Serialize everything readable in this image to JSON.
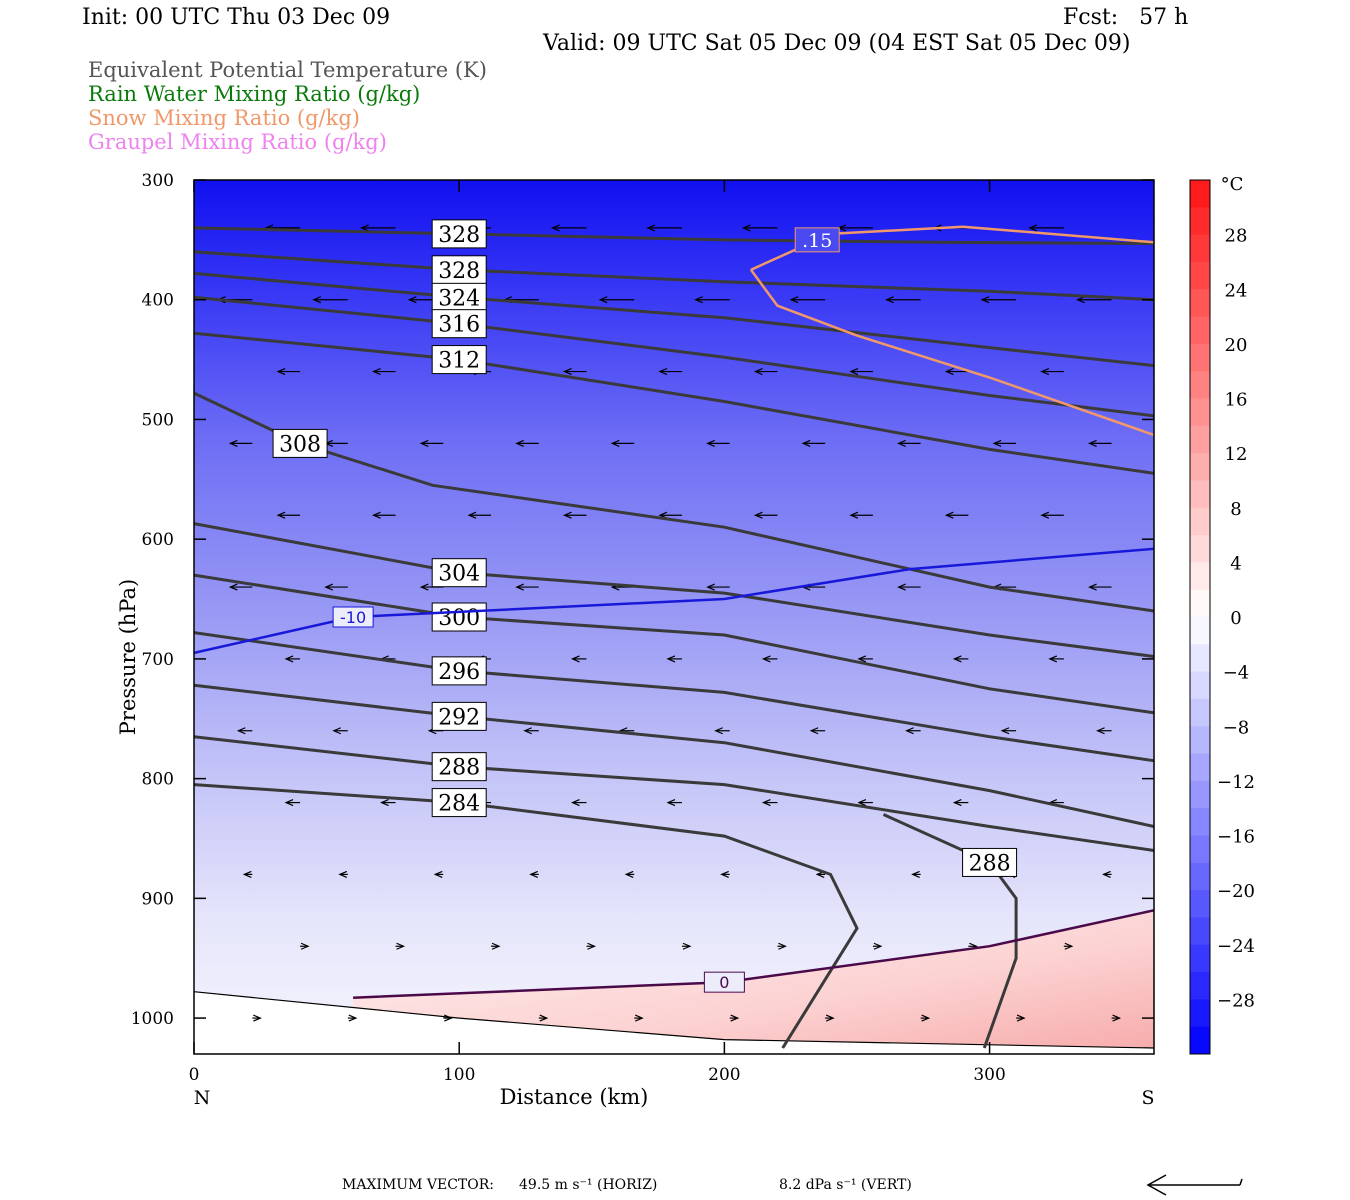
{
  "header": {
    "init": "Init: 00 UTC Thu 03 Dec 09",
    "fcst": "Fcst:   57 h",
    "valid": "Valid: 09 UTC Sat 05 Dec 09 (04 EST Sat 05 Dec 09)"
  },
  "legend": [
    {
      "label": "Equivalent Potential Temperature (K)",
      "color": "#555555"
    },
    {
      "label": "Rain Water Mixing Ratio (g/kg)",
      "color": "#0a7a0a"
    },
    {
      "label": "Snow Mixing Ratio (g/kg)",
      "color": "#f0986a"
    },
    {
      "label": "Graupel Mixing Ratio (g/kg)",
      "color": "#ee82ee"
    }
  ],
  "footer": {
    "max_vector_label": "MAXIMUM VECTOR:",
    "horiz": "49.5 m s⁻¹ (HORIZ)",
    "vert": "8.2 dPa s⁻¹ (VERT)"
  },
  "chart_data": {
    "type": "contour",
    "xlabel": "Distance (km)",
    "ylabel": "Pressure (hPa)",
    "xlim": [
      0,
      362
    ],
    "ylim": [
      1030,
      300
    ],
    "xticks": [
      0,
      100,
      200,
      300
    ],
    "yticks": [
      300,
      400,
      500,
      600,
      700,
      800,
      900,
      1000
    ],
    "x_end_labels": {
      "left": "N",
      "right": "S"
    },
    "colorbar": {
      "unit": "°C",
      "ticks": [
        28,
        24,
        20,
        16,
        12,
        8,
        4,
        0,
        -4,
        -8,
        -12,
        -16,
        -20,
        -24,
        -28
      ],
      "range": [
        -32,
        32
      ]
    },
    "theta_e_lines": [
      {
        "label": "328",
        "points": [
          [
            0,
            340
          ],
          [
            100,
            345
          ],
          [
            200,
            350
          ],
          [
            280,
            352
          ],
          [
            362,
            353
          ]
        ]
      },
      {
        "label": "328",
        "points": [
          [
            0,
            360
          ],
          [
            100,
            375
          ],
          [
            200,
            385
          ],
          [
            300,
            393
          ],
          [
            362,
            400
          ]
        ]
      },
      {
        "label": "324",
        "points": [
          [
            0,
            378
          ],
          [
            100,
            398
          ],
          [
            200,
            415
          ],
          [
            300,
            440
          ],
          [
            362,
            455
          ]
        ]
      },
      {
        "label": "316",
        "points": [
          [
            0,
            398
          ],
          [
            100,
            420
          ],
          [
            200,
            448
          ],
          [
            300,
            480
          ],
          [
            362,
            497
          ]
        ]
      },
      {
        "label": "312",
        "points": [
          [
            0,
            428
          ],
          [
            100,
            450
          ],
          [
            200,
            485
          ],
          [
            300,
            525
          ],
          [
            362,
            545
          ]
        ]
      },
      {
        "label": "308",
        "points": [
          [
            0,
            478
          ],
          [
            40,
            520
          ],
          [
            90,
            555
          ],
          [
            200,
            590
          ],
          [
            300,
            640
          ],
          [
            362,
            660
          ]
        ]
      },
      {
        "label": "304",
        "points": [
          [
            0,
            587
          ],
          [
            100,
            628
          ],
          [
            200,
            645
          ],
          [
            300,
            680
          ],
          [
            362,
            698
          ]
        ]
      },
      {
        "label": "300",
        "points": [
          [
            0,
            630
          ],
          [
            100,
            665
          ],
          [
            200,
            680
          ],
          [
            300,
            725
          ],
          [
            362,
            745
          ]
        ]
      },
      {
        "label": "296",
        "points": [
          [
            0,
            678
          ],
          [
            100,
            710
          ],
          [
            200,
            728
          ],
          [
            300,
            765
          ],
          [
            362,
            785
          ]
        ]
      },
      {
        "label": "292",
        "points": [
          [
            0,
            722
          ],
          [
            100,
            748
          ],
          [
            200,
            770
          ],
          [
            300,
            810
          ],
          [
            362,
            840
          ]
        ]
      },
      {
        "label": "288",
        "points": [
          [
            0,
            765
          ],
          [
            100,
            790
          ],
          [
            200,
            805
          ],
          [
            300,
            840
          ],
          [
            362,
            860
          ]
        ]
      },
      {
        "label": "284",
        "points": [
          [
            0,
            805
          ],
          [
            100,
            820
          ],
          [
            200,
            848
          ],
          [
            240,
            880
          ],
          [
            250,
            925
          ],
          [
            222,
            1025
          ]
        ]
      },
      {
        "label": "288",
        "points": [
          [
            260,
            830
          ],
          [
            300,
            870
          ],
          [
            310,
            900
          ],
          [
            310,
            950
          ],
          [
            298,
            1025
          ]
        ]
      }
    ],
    "isotherms": [
      {
        "label": "-10",
        "points": [
          [
            0,
            695
          ],
          [
            60,
            665
          ],
          [
            200,
            650
          ],
          [
            270,
            625
          ],
          [
            362,
            608
          ]
        ]
      },
      {
        "label": "0",
        "points": [
          [
            60,
            983
          ],
          [
            200,
            970
          ],
          [
            300,
            940
          ],
          [
            362,
            910
          ]
        ]
      }
    ],
    "snow_contour": {
      "label": ".15",
      "points": [
        [
          210,
          375
        ],
        [
          220,
          405
        ],
        [
          250,
          430
        ],
        [
          300,
          465
        ],
        [
          362,
          513
        ]
      ],
      "upper": [
        [
          210,
          375
        ],
        [
          240,
          345
        ],
        [
          290,
          339
        ],
        [
          362,
          352
        ]
      ]
    },
    "terrain": [
      [
        0,
        978
      ],
      [
        100,
        1000
      ],
      [
        200,
        1018
      ],
      [
        362,
        1025
      ]
    ]
  }
}
